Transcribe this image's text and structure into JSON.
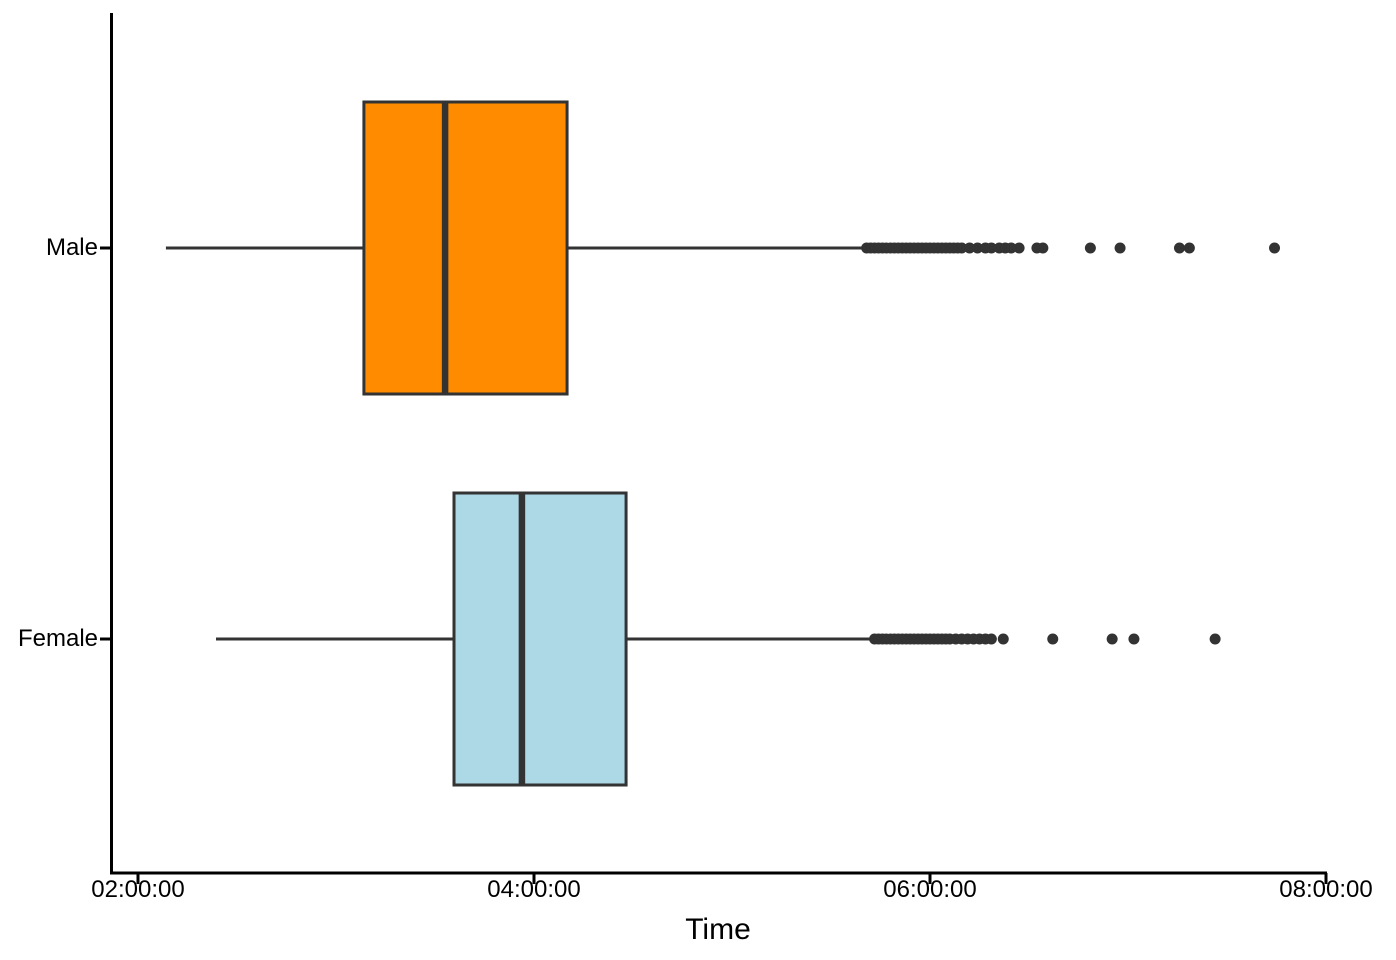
{
  "chart_data": {
    "type": "boxplot",
    "orientation": "horizontal",
    "title": "",
    "xlabel": "Time",
    "ylabel": "",
    "x_axis_unit": "hh:mm:ss",
    "x_ticks_hours": [
      2,
      4,
      6,
      8
    ],
    "x_tick_labels": [
      "02:00:00",
      "04:00:00",
      "06:00:00",
      "08:00:00"
    ],
    "x_range_hours": [
      1.86,
      8.0
    ],
    "grid": "off",
    "legend": "none",
    "categories": [
      "Male",
      "Female"
    ],
    "axis_color": "#000000",
    "element_color": "#333333",
    "series": [
      {
        "name": "Male",
        "fill": "#FF8C00",
        "stroke": "#333333",
        "stats_time": {
          "whisker_low": "02:08:30",
          "q1": "03:08:30",
          "median": "03:33:00",
          "q3": "04:10:00",
          "whisker_high": "05:39:30"
        },
        "stats_hours": {
          "whisker_low": 2.141,
          "q1": 3.141,
          "median": 3.551,
          "q3": 4.167,
          "whisker_high": 5.657
        },
        "outliers_hours": [
          5.68,
          5.7,
          5.72,
          5.74,
          5.76,
          5.78,
          5.8,
          5.82,
          5.84,
          5.86,
          5.88,
          5.9,
          5.92,
          5.94,
          5.96,
          5.98,
          6.0,
          6.02,
          6.04,
          6.06,
          6.08,
          6.1,
          6.12,
          6.14,
          6.16,
          6.2,
          6.24,
          6.28,
          6.31,
          6.35,
          6.38,
          6.41,
          6.45,
          6.54,
          6.57,
          6.81,
          6.96,
          7.26,
          7.31,
          7.74
        ]
      },
      {
        "name": "Female",
        "fill": "#ADD8E6",
        "stroke": "#333333",
        "stats_time": {
          "whisker_low": "02:23:40",
          "q1": "03:35:50",
          "median": "03:56:20",
          "q3": "04:27:50",
          "whisker_high": "05:42:45"
        },
        "stats_hours": {
          "whisker_low": 2.394,
          "q1": 3.596,
          "median": 3.939,
          "q3": 4.465,
          "whisker_high": 5.712
        },
        "outliers_hours": [
          5.72,
          5.74,
          5.76,
          5.78,
          5.8,
          5.82,
          5.84,
          5.86,
          5.88,
          5.9,
          5.92,
          5.94,
          5.96,
          5.98,
          6.0,
          6.02,
          6.04,
          6.06,
          6.08,
          6.1,
          6.13,
          6.16,
          6.19,
          6.22,
          6.25,
          6.28,
          6.31,
          6.37,
          6.62,
          6.92,
          7.03,
          7.44
        ]
      }
    ]
  }
}
